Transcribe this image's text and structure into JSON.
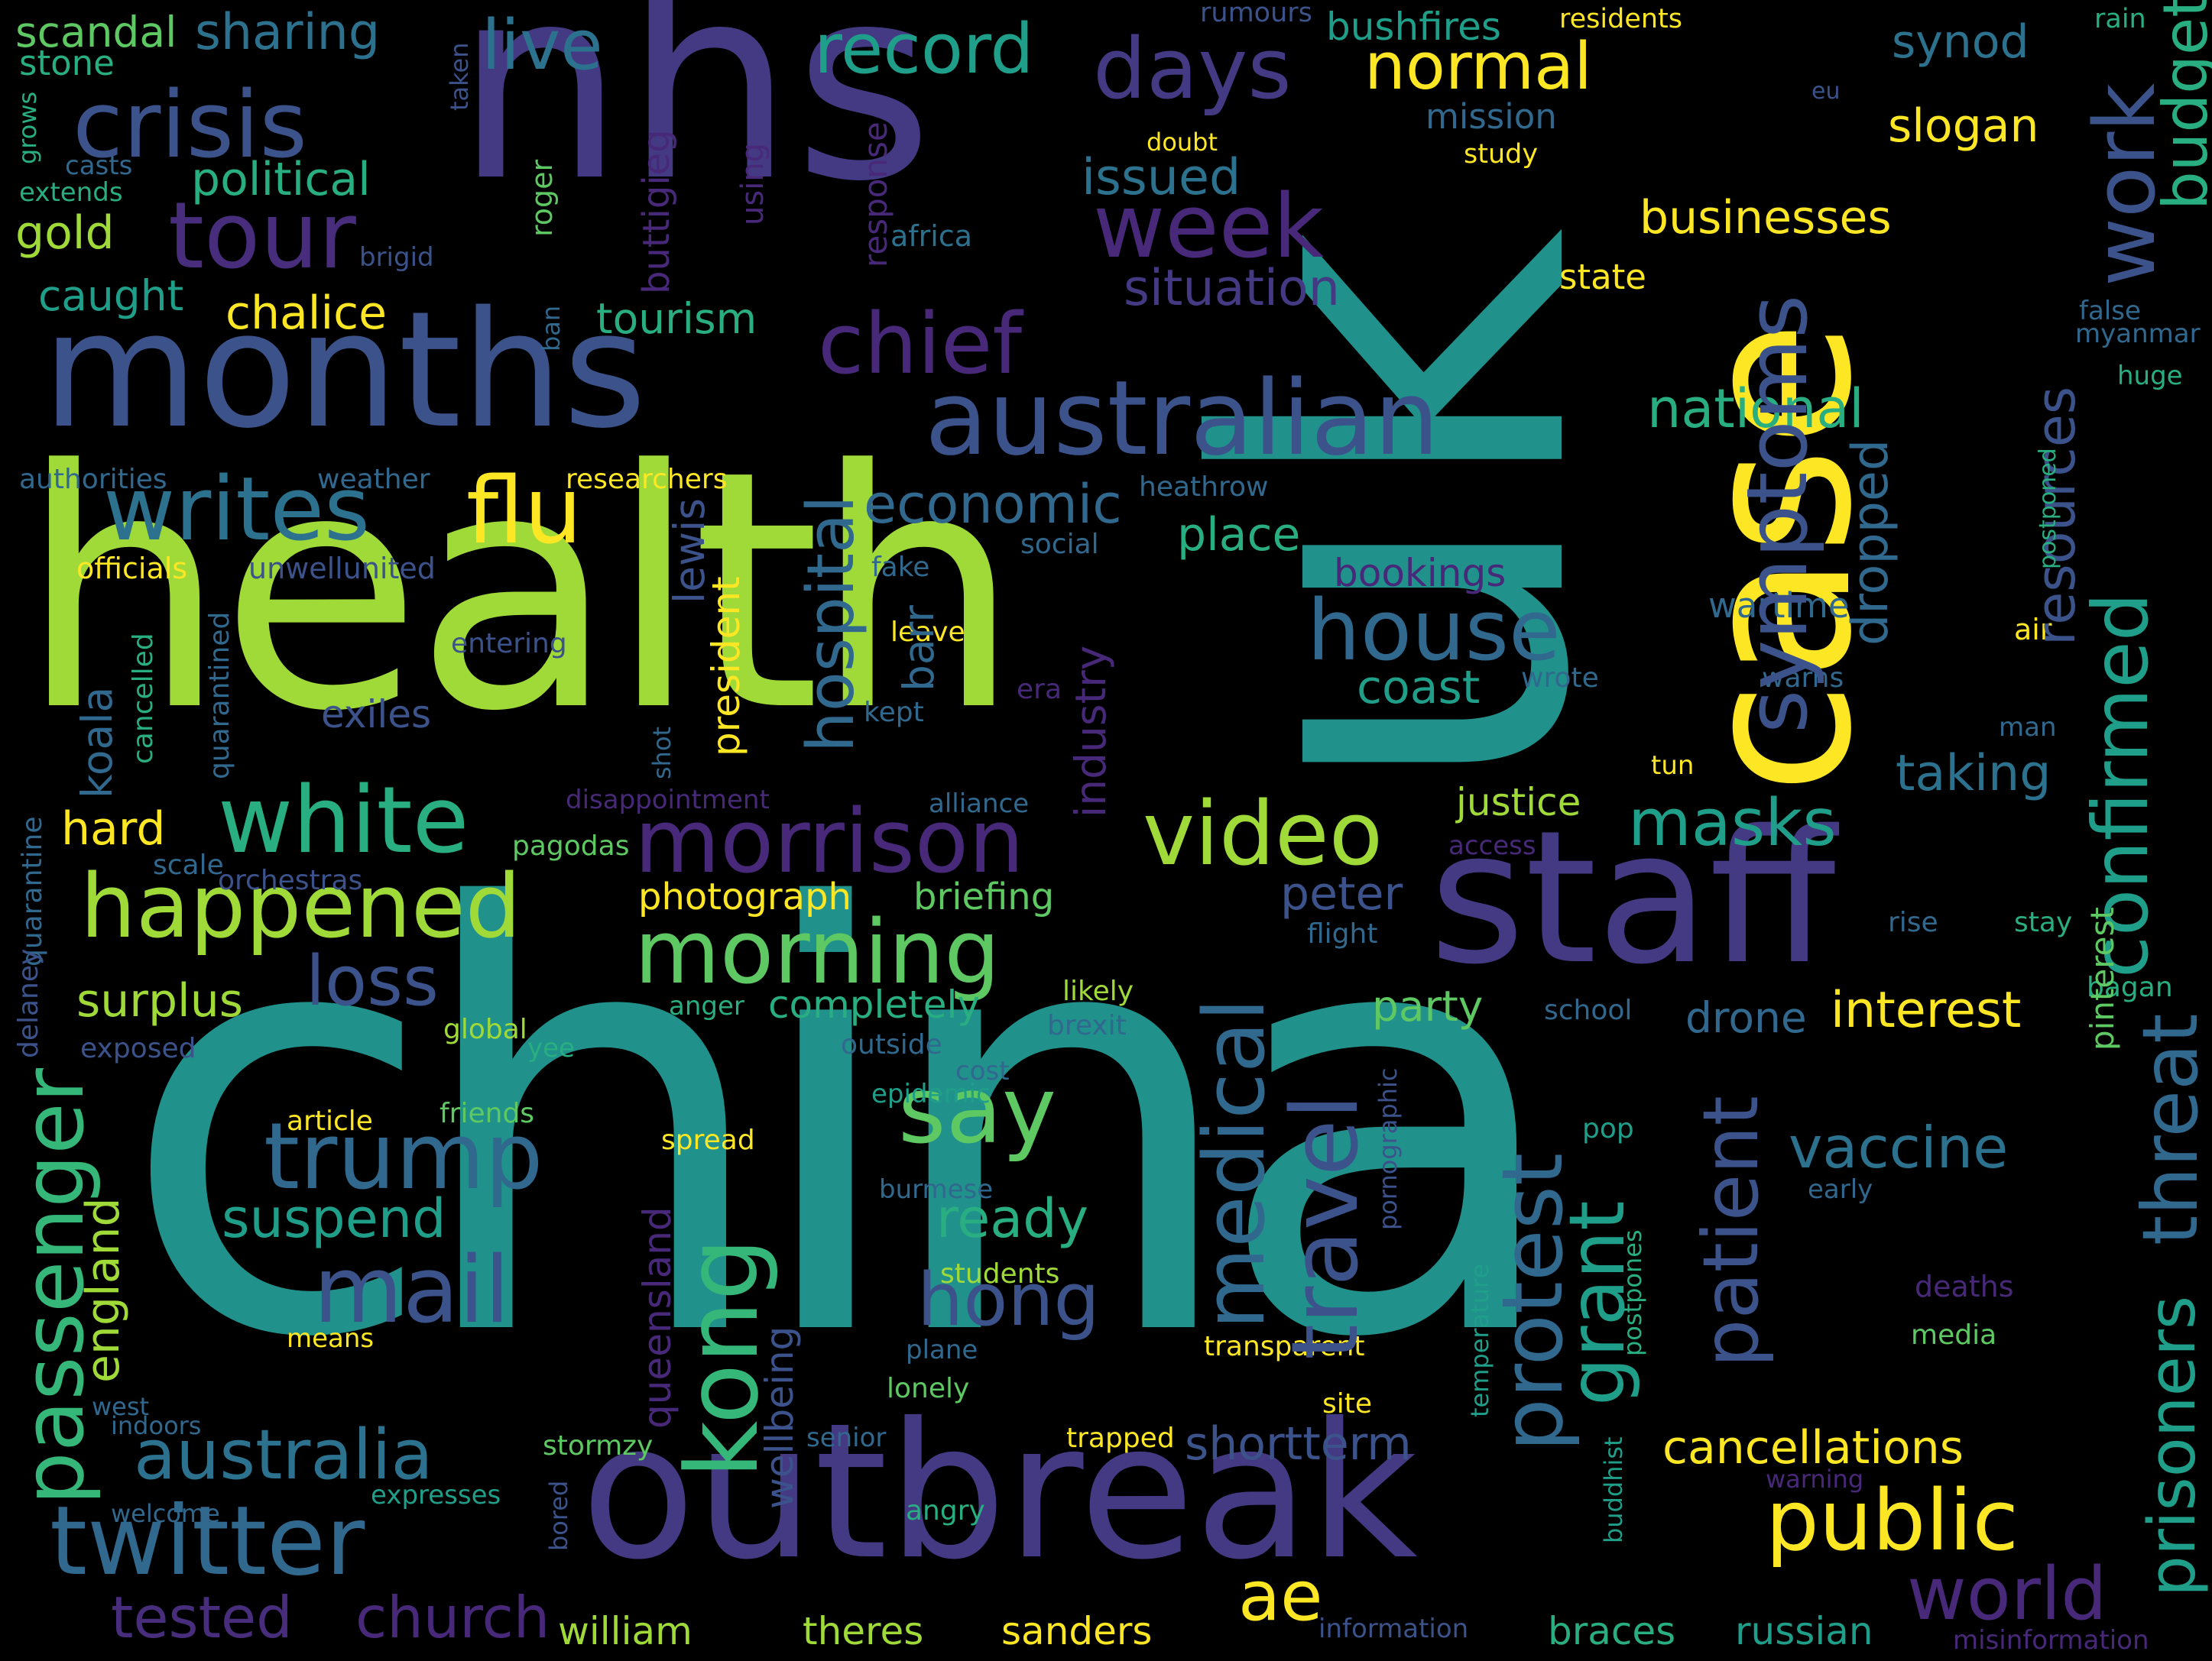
{
  "palette": {
    "teal": "#21918c",
    "green": "#5ec962",
    "lime": "#a0da39",
    "yellow": "#fde725",
    "purple": "#472d7b",
    "indigo": "#443a83",
    "blue": "#3b528b",
    "steel": "#31688e",
    "cyan": "#2c728e",
    "sea": "#1f9e89",
    "jade": "#28ae80",
    "mint": "#35b779",
    "grape": "#482878",
    "violet": "#440154"
  },
  "words": [
    {
      "text": "china",
      "c": "teal"
    },
    {
      "text": "uk",
      "c": "teal"
    },
    {
      "text": "health",
      "c": "lime"
    },
    {
      "text": "nhs",
      "c": "indigo"
    },
    {
      "text": "case",
      "c": "yellow"
    },
    {
      "text": "months",
      "c": "blue"
    },
    {
      "text": "outbreak",
      "c": "indigo"
    },
    {
      "text": "staff",
      "c": "indigo"
    },
    {
      "text": "australian",
      "c": "blue"
    },
    {
      "text": "crisis",
      "c": "blue"
    },
    {
      "text": "tour",
      "c": "purple"
    },
    {
      "text": "week",
      "c": "grape"
    },
    {
      "text": "days",
      "c": "indigo"
    },
    {
      "text": "chief",
      "c": "grape"
    },
    {
      "text": "normal",
      "c": "yellow"
    },
    {
      "text": "record",
      "c": "sea"
    },
    {
      "text": "live",
      "c": "cyan"
    },
    {
      "text": "sharing",
      "c": "cyan"
    },
    {
      "text": "scandal",
      "c": "green"
    },
    {
      "text": "stone",
      "c": "jade"
    },
    {
      "text": "political",
      "c": "jade"
    },
    {
      "text": "gold",
      "c": "lime"
    },
    {
      "text": "caught",
      "c": "sea"
    },
    {
      "text": "chalice",
      "c": "yellow"
    },
    {
      "text": "tourism",
      "c": "jade"
    },
    {
      "text": "situation",
      "c": "indigo"
    },
    {
      "text": "issued",
      "c": "cyan"
    },
    {
      "text": "businesses",
      "c": "yellow"
    },
    {
      "text": "state",
      "c": "yellow"
    },
    {
      "text": "slogan",
      "c": "yellow"
    },
    {
      "text": "synod",
      "c": "cyan"
    },
    {
      "text": "mission",
      "c": "steel"
    },
    {
      "text": "study",
      "c": "yellow"
    },
    {
      "text": "doubt",
      "c": "yellow"
    },
    {
      "text": "bushfires",
      "c": "sea"
    },
    {
      "text": "residents",
      "c": "yellow"
    },
    {
      "text": "rumours",
      "c": "blue"
    },
    {
      "text": "rain",
      "c": "jade"
    },
    {
      "text": "eu",
      "c": "blue"
    },
    {
      "text": "africa",
      "c": "cyan"
    },
    {
      "text": "writes",
      "c": "cyan"
    },
    {
      "text": "flu",
      "c": "yellow"
    },
    {
      "text": "white",
      "c": "jade"
    },
    {
      "text": "happened",
      "c": "lime"
    },
    {
      "text": "morrison",
      "c": "grape"
    },
    {
      "text": "morning",
      "c": "green"
    },
    {
      "text": "video",
      "c": "lime"
    },
    {
      "text": "economic",
      "c": "steel"
    },
    {
      "text": "place",
      "c": "jade"
    },
    {
      "text": "house",
      "c": "steel"
    },
    {
      "text": "national",
      "c": "jade"
    },
    {
      "text": "coast",
      "c": "sea"
    },
    {
      "text": "bookings",
      "c": "grape"
    },
    {
      "text": "wartime",
      "c": "steel"
    },
    {
      "text": "taking",
      "c": "cyan"
    },
    {
      "text": "masks",
      "c": "sea"
    },
    {
      "text": "justice",
      "c": "lime"
    },
    {
      "text": "photograph",
      "c": "yellow"
    },
    {
      "text": "briefing",
      "c": "green"
    },
    {
      "text": "peter",
      "c": "blue"
    },
    {
      "text": "party",
      "c": "green"
    },
    {
      "text": "interest",
      "c": "yellow"
    },
    {
      "text": "drone",
      "c": "steel"
    },
    {
      "text": "loss",
      "c": "blue"
    },
    {
      "text": "surplus",
      "c": "lime"
    },
    {
      "text": "completely",
      "c": "jade"
    },
    {
      "text": "say",
      "c": "green"
    },
    {
      "text": "trump",
      "c": "steel"
    },
    {
      "text": "suspend",
      "c": "sea"
    },
    {
      "text": "ready",
      "c": "jade"
    },
    {
      "text": "mail",
      "c": "blue"
    },
    {
      "text": "hong",
      "c": "blue"
    },
    {
      "text": "vaccine",
      "c": "cyan"
    },
    {
      "text": "australia",
      "c": "cyan"
    },
    {
      "text": "twitter",
      "c": "steel"
    },
    {
      "text": "shortterm",
      "c": "blue"
    },
    {
      "text": "cancellations",
      "c": "yellow"
    },
    {
      "text": "public",
      "c": "yellow"
    },
    {
      "text": "world",
      "c": "grape"
    },
    {
      "text": "ae",
      "c": "yellow"
    },
    {
      "text": "tested",
      "c": "purple"
    },
    {
      "text": "church",
      "c": "grape"
    },
    {
      "text": "william",
      "c": "lime"
    },
    {
      "text": "theres",
      "c": "lime"
    },
    {
      "text": "sanders",
      "c": "yellow"
    },
    {
      "text": "braces",
      "c": "jade"
    },
    {
      "text": "russian",
      "c": "sea"
    },
    {
      "text": "hard",
      "c": "yellow"
    },
    {
      "text": "officials",
      "c": "yellow"
    },
    {
      "text": "unwellunited",
      "c": "blue"
    },
    {
      "text": "authorities",
      "c": "steel"
    },
    {
      "text": "weather",
      "c": "steel"
    },
    {
      "text": "researchers",
      "c": "yellow"
    },
    {
      "text": "heathrow",
      "c": "steel"
    },
    {
      "text": "social",
      "c": "steel"
    },
    {
      "text": "fake",
      "c": "steel"
    },
    {
      "text": "leave",
      "c": "yellow"
    },
    {
      "text": "kept",
      "c": "steel"
    },
    {
      "text": "era",
      "c": "grape"
    },
    {
      "text": "wrote",
      "c": "steel"
    },
    {
      "text": "warns",
      "c": "steel"
    },
    {
      "text": "air",
      "c": "yellow"
    },
    {
      "text": "man",
      "c": "steel"
    },
    {
      "text": "tun",
      "c": "yellow"
    },
    {
      "text": "entering",
      "c": "blue"
    },
    {
      "text": "exiles",
      "c": "blue"
    },
    {
      "text": "disappointment",
      "c": "grape"
    },
    {
      "text": "alliance",
      "c": "steel"
    },
    {
      "text": "access",
      "c": "grape"
    },
    {
      "text": "pagodas",
      "c": "green"
    },
    {
      "text": "scale",
      "c": "steel"
    },
    {
      "text": "orchestras",
      "c": "blue"
    },
    {
      "text": "flight",
      "c": "steel"
    },
    {
      "text": "rise",
      "c": "steel"
    },
    {
      "text": "stay",
      "c": "jade"
    },
    {
      "text": "likely",
      "c": "lime"
    },
    {
      "text": "brexit",
      "c": "steel"
    },
    {
      "text": "school",
      "c": "steel"
    },
    {
      "text": "bagan",
      "c": "jade"
    },
    {
      "text": "anger",
      "c": "jade"
    },
    {
      "text": "global",
      "c": "lime"
    },
    {
      "text": "yee",
      "c": "jade"
    },
    {
      "text": "exposed",
      "c": "blue"
    },
    {
      "text": "outside",
      "c": "steel"
    },
    {
      "text": "cost",
      "c": "steel"
    },
    {
      "text": "epidemic",
      "c": "sea"
    },
    {
      "text": "article",
      "c": "yellow"
    },
    {
      "text": "friends",
      "c": "green"
    },
    {
      "text": "spread",
      "c": "yellow"
    },
    {
      "text": "pop",
      "c": "sea"
    },
    {
      "text": "burmese",
      "c": "steel"
    },
    {
      "text": "early",
      "c": "steel"
    },
    {
      "text": "students",
      "c": "lime"
    },
    {
      "text": "deaths",
      "c": "grape"
    },
    {
      "text": "means",
      "c": "yellow"
    },
    {
      "text": "plane",
      "c": "steel"
    },
    {
      "text": "transparent",
      "c": "yellow"
    },
    {
      "text": "media",
      "c": "green"
    },
    {
      "text": "west",
      "c": "steel"
    },
    {
      "text": "indoors",
      "c": "steel"
    },
    {
      "text": "lonely",
      "c": "green"
    },
    {
      "text": "site",
      "c": "yellow"
    },
    {
      "text": "stormzy",
      "c": "green"
    },
    {
      "text": "senior",
      "c": "steel"
    },
    {
      "text": "trapped",
      "c": "yellow"
    },
    {
      "text": "expresses",
      "c": "sea"
    },
    {
      "text": "welcome",
      "c": "steel"
    },
    {
      "text": "angry",
      "c": "jade"
    },
    {
      "text": "warning",
      "c": "grape"
    },
    {
      "text": "information",
      "c": "blue"
    },
    {
      "text": "misinformation",
      "c": "grape"
    },
    {
      "text": "false",
      "c": "steel"
    },
    {
      "text": "myanmar",
      "c": "steel"
    },
    {
      "text": "huge",
      "c": "jade"
    },
    {
      "text": "grows",
      "c": "jade"
    },
    {
      "text": "casts",
      "c": "steel"
    },
    {
      "text": "extends",
      "c": "jade"
    },
    {
      "text": "brigid",
      "c": "blue"
    },
    {
      "text": "symptoms",
      "c": "blue"
    },
    {
      "text": "confirmed",
      "c": "sea"
    },
    {
      "text": "work",
      "c": "blue"
    },
    {
      "text": "budget",
      "c": "jade"
    },
    {
      "text": "threat",
      "c": "steel"
    },
    {
      "text": "prisoners",
      "c": "sea"
    },
    {
      "text": "resources",
      "c": "blue"
    },
    {
      "text": "dropped",
      "c": "steel"
    },
    {
      "text": "patient",
      "c": "blue"
    },
    {
      "text": "grant",
      "c": "sea"
    },
    {
      "text": "protest",
      "c": "steel"
    },
    {
      "text": "travel",
      "c": "blue"
    },
    {
      "text": "medical",
      "c": "steel"
    },
    {
      "text": "industry",
      "c": "grape"
    },
    {
      "text": "barr",
      "c": "steel"
    },
    {
      "text": "hospital",
      "c": "steel"
    },
    {
      "text": "lewis",
      "c": "blue"
    },
    {
      "text": "president",
      "c": "yellow"
    },
    {
      "text": "kong",
      "c": "mint"
    },
    {
      "text": "queensland",
      "c": "grape"
    },
    {
      "text": "wellbeing",
      "c": "blue"
    },
    {
      "text": "passenger",
      "c": "mint"
    },
    {
      "text": "england",
      "c": "lime"
    },
    {
      "text": "koala",
      "c": "steel"
    },
    {
      "text": "cancelled",
      "c": "jade"
    },
    {
      "text": "quarantined",
      "c": "steel"
    },
    {
      "text": "quarantine",
      "c": "steel"
    },
    {
      "text": "delaney",
      "c": "blue"
    },
    {
      "text": "taken",
      "c": "blue"
    },
    {
      "text": "roger",
      "c": "green"
    },
    {
      "text": "buttigieg",
      "c": "grape"
    },
    {
      "text": "using",
      "c": "grape"
    },
    {
      "text": "response",
      "c": "grape"
    },
    {
      "text": "ban",
      "c": "steel"
    },
    {
      "text": "shot",
      "c": "steel"
    },
    {
      "text": "pinterest",
      "c": "green"
    },
    {
      "text": "postponed",
      "c": "jade"
    },
    {
      "text": "pornographic",
      "c": "blue"
    },
    {
      "text": "temperature",
      "c": "sea"
    },
    {
      "text": "postpones",
      "c": "jade"
    },
    {
      "text": "buddhist",
      "c": "sea"
    },
    {
      "text": "bored",
      "c": "blue"
    }
  ]
}
